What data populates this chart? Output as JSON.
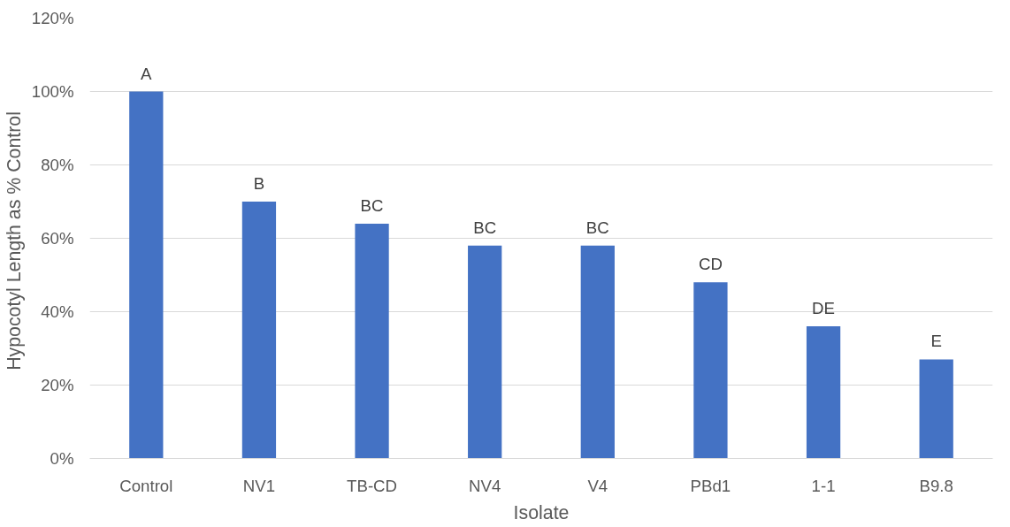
{
  "chart_data": {
    "type": "bar",
    "xlabel": "Isolate",
    "ylabel": "Hypocotyl Length  as % Control",
    "categories": [
      "Control",
      "NV1",
      "TB-CD",
      "NV4",
      "V4",
      "PBd1",
      "1-1",
      "B9.8"
    ],
    "values": [
      100,
      70,
      64,
      58,
      58,
      48,
      36,
      27
    ],
    "color": "#4472c4",
    "ylim": [
      0,
      120
    ],
    "yticks": [
      {
        "value": 0,
        "label": "0%"
      },
      {
        "value": 20,
        "label": "20%"
      },
      {
        "value": 40,
        "label": "40%"
      },
      {
        "value": 60,
        "label": "60%"
      },
      {
        "value": 80,
        "label": "80%"
      },
      {
        "value": 100,
        "label": "100%"
      },
      {
        "value": 120,
        "label": "120%"
      }
    ],
    "grid": "y",
    "annotations": [
      {
        "text": "A",
        "x": "Control",
        "y": 100
      },
      {
        "text": "B",
        "x": "NV1",
        "y": 70
      },
      {
        "text": "BC",
        "x": "TB-CD",
        "y": 64
      },
      {
        "text": "BC",
        "x": "NV4",
        "y": 58
      },
      {
        "text": "BC",
        "x": "V4",
        "y": 58
      },
      {
        "text": "CD",
        "x": "PBd1",
        "y": 48
      },
      {
        "text": "DE",
        "x": "1-1",
        "y": 36
      },
      {
        "text": "E",
        "x": "B9.8",
        "y": 27
      }
    ]
  }
}
